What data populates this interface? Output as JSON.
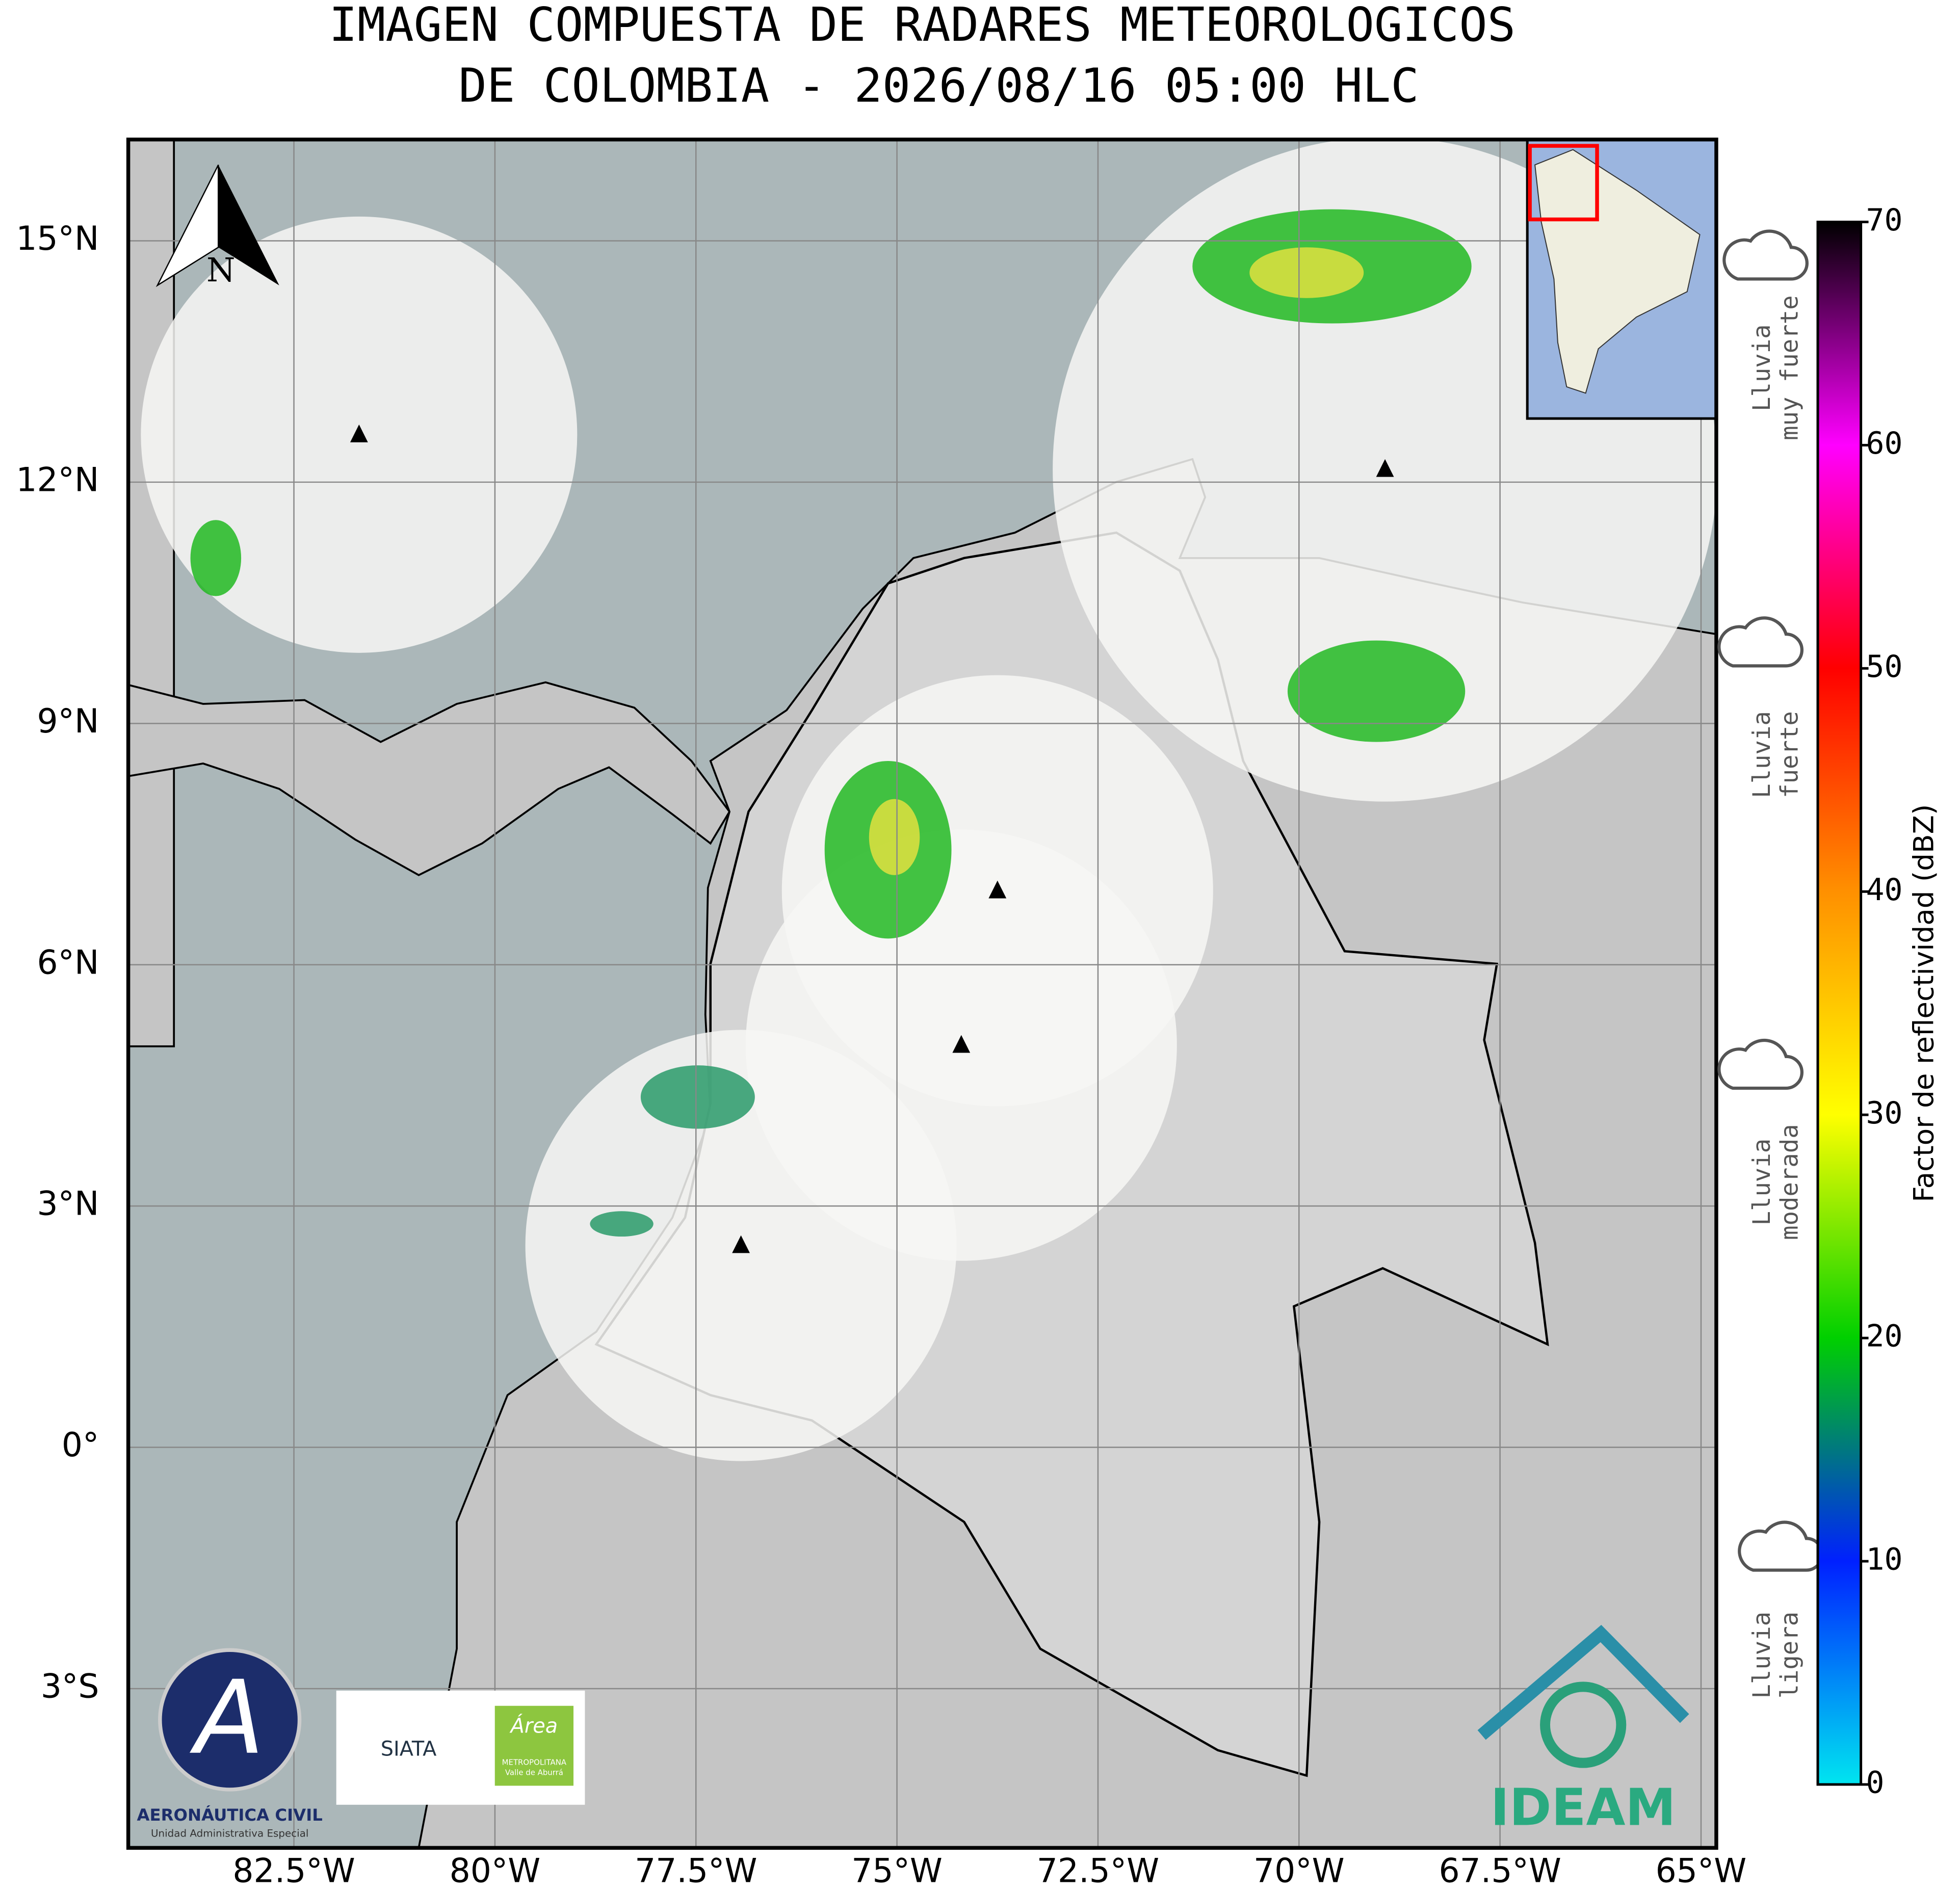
{
  "title_lines": [
    "IMAGEN COMPUESTA DE RADARES METEOROLOGICOS",
    "DE COLOMBIA - 2026/08/16 05:00 HLC"
  ],
  "map": {
    "lon_range": [
      -84.56,
      -64.81
    ],
    "lat_range": [
      -4.98,
      16.26
    ],
    "lon_ticks": [
      {
        "value": -82.5,
        "label": "82.5°W"
      },
      {
        "value": -80,
        "label": "80°W"
      },
      {
        "value": -77.5,
        "label": "77.5°W"
      },
      {
        "value": -75,
        "label": "75°W"
      },
      {
        "value": -72.5,
        "label": "72.5°W"
      },
      {
        "value": -70,
        "label": "70°W"
      },
      {
        "value": -67.5,
        "label": "67.5°W"
      },
      {
        "value": -65,
        "label": "65°W"
      }
    ],
    "lat_ticks": [
      {
        "value": 15,
        "label": "15°N"
      },
      {
        "value": 12,
        "label": "12°N"
      },
      {
        "value": 9,
        "label": "9°N"
      },
      {
        "value": 6,
        "label": "6°N"
      },
      {
        "value": 3,
        "label": "3°N"
      },
      {
        "value": 0,
        "label": "0°"
      },
      {
        "value": -3,
        "label": "3°S"
      }
    ],
    "grid": true,
    "radar_sites": [
      {
        "lat": 12.59,
        "lon": -81.69
      },
      {
        "lat": 12.16,
        "lon": -68.93
      },
      {
        "lat": 6.92,
        "lon": -73.75
      },
      {
        "lat": 5.0,
        "lon": -74.2
      },
      {
        "lat": 2.51,
        "lon": -76.94
      }
    ],
    "north_label": "N"
  },
  "colorbar": {
    "label": "Factor de reflectividad (dBZ)",
    "range": [
      0,
      70
    ],
    "ticks": [
      0,
      10,
      20,
      30,
      40,
      50,
      60,
      70
    ],
    "colors": [
      "#00e5f0",
      "#0020ff",
      "#00d000",
      "#ffff00",
      "#ff9000",
      "#ff0000",
      "#ff00ff",
      "#000000"
    ]
  },
  "rain_categories": [
    [
      "Lluvia",
      "muy fuerte"
    ],
    [
      "Lluvia",
      "fuerte"
    ],
    [
      "Lluvia",
      "moderada"
    ],
    [
      "Lluvia",
      "ligera"
    ]
  ],
  "logos": {
    "aero_name": "AERONÁUTICA CIVIL",
    "aero_sub": "Unidad Administrativa Especial",
    "siata": "SIATA",
    "area": "Área",
    "area_sub1": "METROPOLITANA",
    "area_sub2": "Valle de Aburrá",
    "ideam": "IDEAM"
  }
}
